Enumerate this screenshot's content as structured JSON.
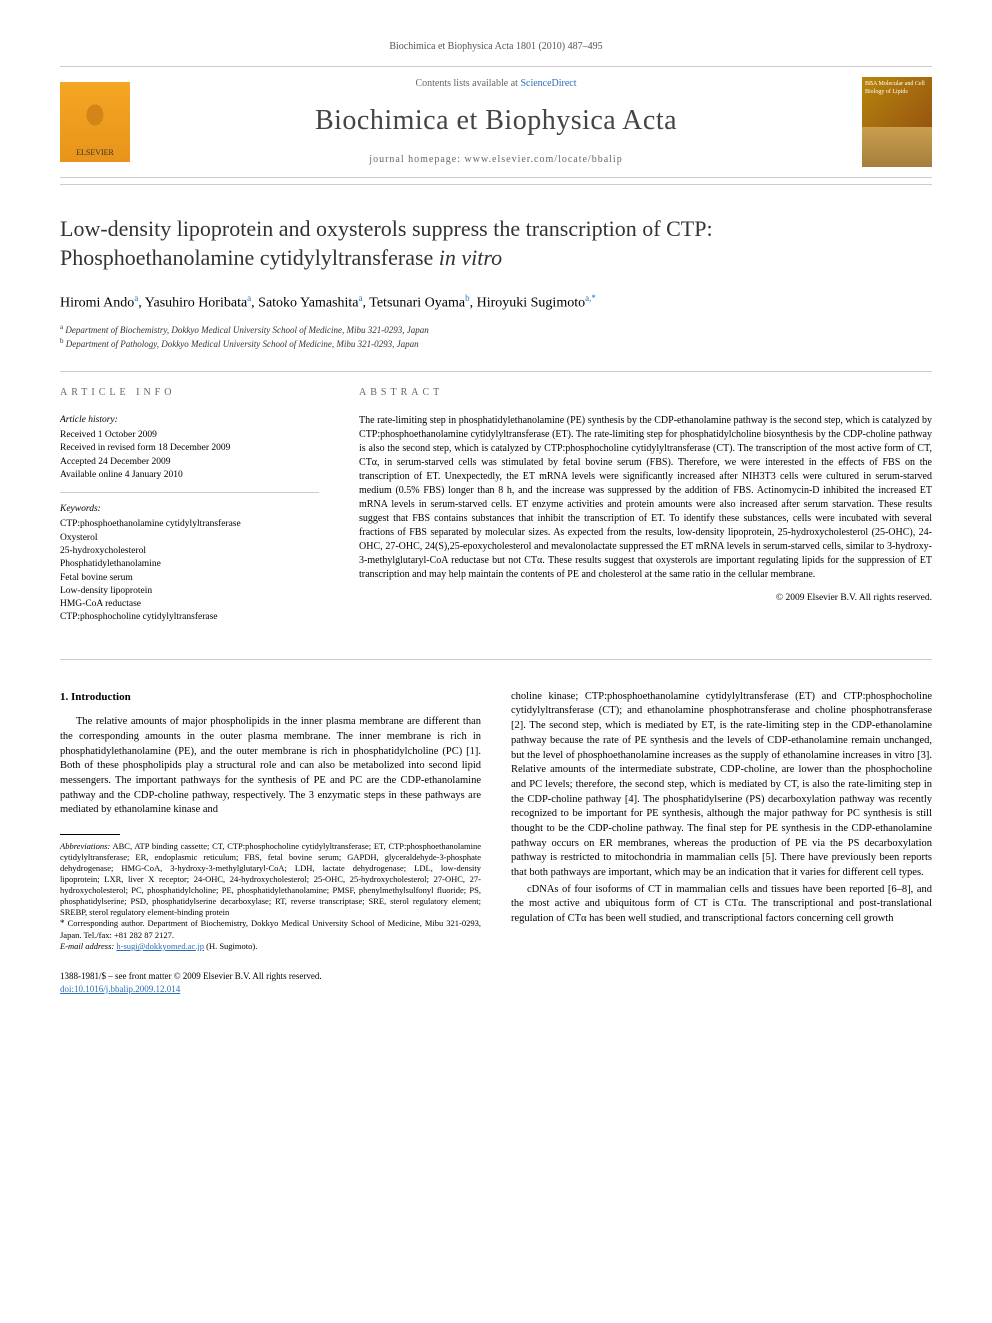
{
  "header": {
    "citation": "Biochimica et Biophysica Acta 1801 (2010) 487–495",
    "contents_prefix": "Contents lists available at ",
    "contents_link": "ScienceDirect",
    "journal": "Biochimica et Biophysica Acta",
    "homepage_prefix": "journal homepage: ",
    "homepage": "www.elsevier.com/locate/bbalip",
    "elsevier_label": "ELSEVIER",
    "cover_text": "BBA Molecular and Cell Biology of Lipids"
  },
  "title_line1": "Low-density lipoprotein and oxysterols suppress the transcription of CTP:",
  "title_line2_plain": "Phosphoethanolamine cytidylyltransferase ",
  "title_line2_em": "in vitro",
  "authors": [
    {
      "name": "Hiromi Ando",
      "aff": "a"
    },
    {
      "name": "Yasuhiro Horibata",
      "aff": "a"
    },
    {
      "name": "Satoko Yamashita",
      "aff": "a"
    },
    {
      "name": "Tetsunari Oyama",
      "aff": "b"
    },
    {
      "name": "Hiroyuki Sugimoto",
      "aff": "a",
      "corr": true
    }
  ],
  "affiliations": {
    "a": "Department of Biochemistry, Dokkyo Medical University School of Medicine, Mibu 321-0293, Japan",
    "b": "Department of Pathology, Dokkyo Medical University School of Medicine, Mibu 321-0293, Japan"
  },
  "article_info": {
    "label": "ARTICLE INFO",
    "history_label": "Article history:",
    "history": [
      "Received 1 October 2009",
      "Received in revised form 18 December 2009",
      "Accepted 24 December 2009",
      "Available online 4 January 2010"
    ],
    "keywords_label": "Keywords:",
    "keywords": [
      "CTP:phosphoethanolamine cytidylyltransferase",
      "Oxysterol",
      "25-hydroxycholesterol",
      "Phosphatidylethanolamine",
      "Fetal bovine serum",
      "Low-density lipoprotein",
      "HMG-CoA reductase",
      "CTP:phosphocholine cytidylyltransferase"
    ]
  },
  "abstract": {
    "label": "ABSTRACT",
    "text": "The rate-limiting step in phosphatidylethanolamine (PE) synthesis by the CDP-ethanolamine pathway is the second step, which is catalyzed by CTP:phosphoethanolamine cytidylyltransferase (ET). The rate-limiting step for phosphatidylcholine biosynthesis by the CDP-choline pathway is also the second step, which is catalyzed by CTP:phosphocholine cytidylyltransferase (CT). The transcription of the most active form of CT, CTα, in serum-starved cells was stimulated by fetal bovine serum (FBS). Therefore, we were interested in the effects of FBS on the transcription of ET. Unexpectedly, the ET mRNA levels were significantly increased after NIH3T3 cells were cultured in serum-starved medium (0.5% FBS) longer than 8 h, and the increase was suppressed by the addition of FBS. Actinomycin-D inhibited the increased ET mRNA levels in serum-starved cells. ET enzyme activities and protein amounts were also increased after serum starvation. These results suggest that FBS contains substances that inhibit the transcription of ET. To identify these substances, cells were incubated with several fractions of FBS separated by molecular sizes. As expected from the results, low-density lipoprotein, 25-hydroxycholesterol (25-OHC), 24-OHC, 27-OHC, 24(S),25-epoxycholesterol and mevalonolactate suppressed the ET mRNA levels in serum-starved cells, similar to 3-hydroxy-3-methylglutaryl-CoA reductase but not CTα. These results suggest that oxysterols are important regulating lipids for the suppression of ET transcription and may help maintain the contents of PE and cholesterol at the same ratio in the cellular membrane.",
    "copyright": "© 2009 Elsevier B.V. All rights reserved."
  },
  "body": {
    "section_heading": "1. Introduction",
    "col1_p1": "The relative amounts of major phospholipids in the inner plasma membrane are different than the corresponding amounts in the outer plasma membrane. The inner membrane is rich in phosphatidylethanolamine (PE), and the outer membrane is rich in phosphatidylcholine (PC) [1]. Both of these phospholipids play a structural role and can also be metabolized into second lipid messengers. The important pathways for the synthesis of PE and PC are the CDP-ethanolamine pathway and the CDP-choline pathway, respectively. The 3 enzymatic steps in these pathways are mediated by ethanolamine kinase and",
    "col2_p1": "choline kinase; CTP:phosphoethanolamine cytidylyltransferase (ET) and CTP:phosphocholine cytidylyltransferase (CT); and ethanolamine phosphotransferase and choline phosphotransferase [2]. The second step, which is mediated by ET, is the rate-limiting step in the CDP-ethanolamine pathway because the rate of PE synthesis and the levels of CDP-ethanolamine remain unchanged, but the level of phosphoethanolamine increases as the supply of ethanolamine increases in vitro [3]. Relative amounts of the intermediate substrate, CDP-choline, are lower than the phosphocholine and PC levels; therefore, the second step, which is mediated by CT, is also the rate-limiting step in the CDP-choline pathway [4]. The phosphatidylserine (PS) decarboxylation pathway was recently recognized to be important for PE synthesis, although the major pathway for PC synthesis is still thought to be the CDP-choline pathway. The final step for PE synthesis in the CDP-ethanolamine pathway occurs on ER membranes, whereas the production of PE via the PS decarboxylation pathway is restricted to mitochondria in mammalian cells [5]. There have previously been reports that both pathways are important, which may be an indication that it varies for different cell types.",
    "col2_p2": "cDNAs of four isoforms of CT in mammalian cells and tissues have been reported [6–8], and the most active and ubiquitous form of CT is CTα. The transcriptional and post-translational regulation of CTα has been well studied, and transcriptional factors concerning cell growth"
  },
  "footnotes": {
    "abbrev_label": "Abbreviations:",
    "abbrev": " ABC, ATP binding cassette; CT, CTP:phosphocholine cytidylyltransferase; ET, CTP:phosphoethanolamine cytidylyltransferase; ER, endoplasmic reticulum; FBS, fetal bovine serum; GAPDH, glyceraldehyde-3-phosphate dehydrogenase; HMG-CoA, 3-hydroxy-3-methylglutaryl-CoA; LDH, lactate dehydrogenase; LDL, low-density lipoprotein; LXR, liver X receptor; 24-OHC, 24-hydroxycholesterol; 25-OHC, 25-hydroxycholesterol; 27-OHC, 27-hydroxycholesterol; PC, phosphatidylcholine; PE, phosphatidylethanolamine; PMSF, phenylmethylsulfonyl fluoride; PS, phosphatidylserine; PSD, phosphatidylserine decarboxylase; RT, reverse transcriptase; SRE, sterol regulatory element; SREBP, sterol regulatory element-binding protein",
    "corr": "Corresponding author. Department of Biochemistry, Dokkyo Medical University School of Medicine, Mibu 321-0293, Japan. Tel./fax: +81 282 87 2127.",
    "email_label": "E-mail address:",
    "email": "h-sugi@dokkyomed.ac.jp",
    "email_person": "(H. Sugimoto)."
  },
  "bottom": {
    "issn_line": "1388-1981/$ – see front matter © 2009 Elsevier B.V. All rights reserved.",
    "doi": "doi:10.1016/j.bbalip.2009.12.014"
  },
  "colors": {
    "link": "#2a6fbb",
    "text": "#000000",
    "muted": "#666666",
    "rule": "#cccccc"
  }
}
